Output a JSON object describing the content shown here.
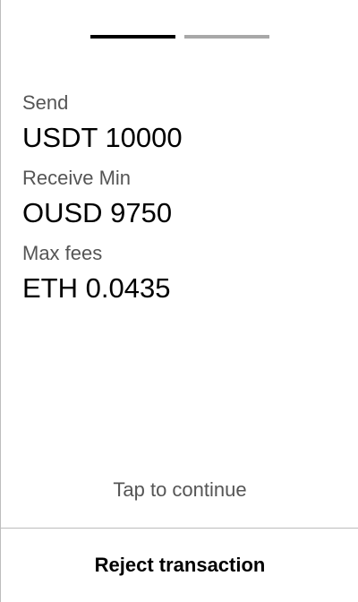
{
  "stepper": {
    "total_steps": 2,
    "current_step": 1,
    "active_color": "#000000",
    "inactive_color": "#a8a8a8"
  },
  "details": {
    "send_label": "Send",
    "send_value": "USDT 10000",
    "receive_label": "Receive Min",
    "receive_value": "OUSD 9750",
    "fees_label": "Max fees",
    "fees_value": "ETH 0.0435"
  },
  "hint": {
    "text": "Tap to continue"
  },
  "actions": {
    "reject_label": "Reject transaction"
  }
}
